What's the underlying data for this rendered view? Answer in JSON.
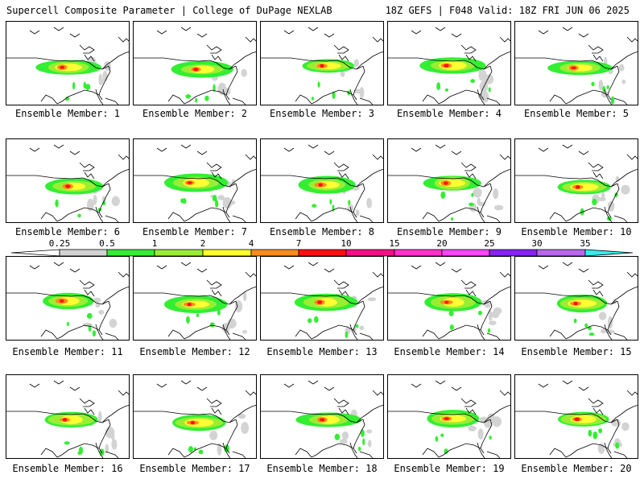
{
  "header": {
    "title_left": "Supercell Composite Parameter | College of DuPage NEXLAB",
    "title_right": "18Z GEFS | F048 Valid: 18Z FRI JUN 06 2025"
  },
  "panels": [
    {
      "label": "Ensemble Member: 1"
    },
    {
      "label": "Ensemble Member: 2"
    },
    {
      "label": "Ensemble Member: 3"
    },
    {
      "label": "Ensemble Member: 4"
    },
    {
      "label": "Ensemble Member: 5"
    },
    {
      "label": "Ensemble Member: 6"
    },
    {
      "label": "Ensemble Member: 7"
    },
    {
      "label": "Ensemble Member: 8"
    },
    {
      "label": "Ensemble Member: 9"
    },
    {
      "label": "Ensemble Member: 10"
    },
    {
      "label": "Ensemble Member: 11"
    },
    {
      "label": "Ensemble Member: 12"
    },
    {
      "label": "Ensemble Member: 13"
    },
    {
      "label": "Ensemble Member: 14"
    },
    {
      "label": "Ensemble Member: 15"
    },
    {
      "label": "Ensemble Member: 16"
    },
    {
      "label": "Ensemble Member: 17"
    },
    {
      "label": "Ensemble Member: 18"
    },
    {
      "label": "Ensemble Member: 19"
    },
    {
      "label": "Ensemble Member: 20"
    }
  ],
  "colorbar": {
    "labels": [
      "0.25",
      "0.5",
      "1",
      "2",
      "4",
      "7",
      "10",
      "15",
      "20",
      "25",
      "30",
      "35"
    ],
    "colors": [
      "#d3d3d3",
      "#33ee33",
      "#99ee33",
      "#ffff33",
      "#ff8c1a",
      "#ff1111",
      "#ee1188",
      "#ff33cc",
      "#ff44ff",
      "#8822ee",
      "#bb66ee",
      "#33eeee"
    ]
  }
}
